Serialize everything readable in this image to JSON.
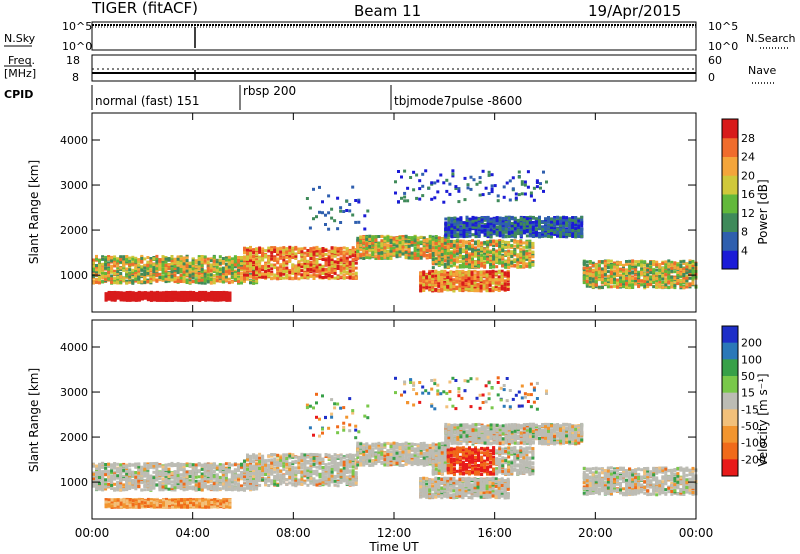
{
  "header": {
    "radar": "TIGER (fitACF)",
    "beam": "Beam 11",
    "date": "19/Apr/2015"
  },
  "top_panels": {
    "nsky_label": "N.Sky",
    "nsearch_label": "N.Search",
    "freq_label_1": "Freq.",
    "freq_label_2": "[MHz]",
    "nave_label": "Nave",
    "cpid_label": "CPID",
    "nsky_ticks": [
      "10^5",
      "10^0"
    ],
    "nsearch_ticks": [
      "10^5",
      "10^0"
    ],
    "freq_ticks": [
      "18",
      "8"
    ],
    "nave_ticks": [
      "60",
      "0"
    ],
    "cpid_segments": [
      {
        "label": "normal (fast) 151",
        "start_hour": 0
      },
      {
        "label": "rbsp 200",
        "start_hour": 6
      },
      {
        "label": "tbjmode7pulse -8600",
        "start_hour": 12
      }
    ]
  },
  "chart_data": [
    {
      "type": "heatmap",
      "name": "power",
      "ylabel": "Slant Range [km]",
      "xlabel": "",
      "ylim": [
        180,
        4600
      ],
      "y_ticks": [
        1000,
        2000,
        3000,
        4000
      ],
      "colorbar": {
        "label": "Power [dB]",
        "ticks": [
          "4",
          "8",
          "12",
          "16",
          "20",
          "24",
          "28"
        ],
        "colors": [
          "#1b1bd6",
          "#2f5fae",
          "#3f8a5a",
          "#62b83a",
          "#cfc83a",
          "#f4a53a",
          "#f06c2c",
          "#d81b1b"
        ]
      }
    },
    {
      "type": "heatmap",
      "name": "velocity",
      "ylabel": "Slant Range [km]",
      "xlabel": "Time UT",
      "ylim": [
        180,
        4600
      ],
      "y_ticks": [
        1000,
        2000,
        3000,
        4000
      ],
      "x_ticks": [
        "00:00",
        "04:00",
        "08:00",
        "12:00",
        "16:00",
        "20:00",
        "00:00"
      ],
      "colorbar": {
        "label": "Velocity [m s⁻¹]",
        "ticks": [
          "200",
          "100",
          "50",
          "15",
          "-15",
          "-50",
          "-100",
          "-200"
        ],
        "colors": [
          "#1e2fc8",
          "#2a78b8",
          "#37a048",
          "#79c84a",
          "#bcbcb4",
          "#f2c07a",
          "#f2952f",
          "#f06a1a",
          "#e81b1b"
        ]
      }
    }
  ]
}
